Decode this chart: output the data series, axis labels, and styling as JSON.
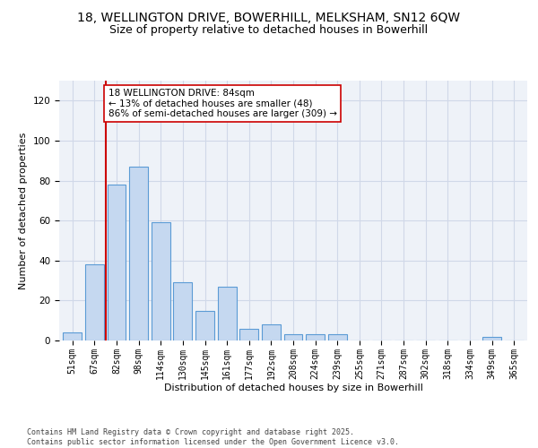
{
  "title_line1": "18, WELLINGTON DRIVE, BOWERHILL, MELKSHAM, SN12 6QW",
  "title_line2": "Size of property relative to detached houses in Bowerhill",
  "xlabel": "Distribution of detached houses by size in Bowerhill",
  "ylabel": "Number of detached properties",
  "categories": [
    "51sqm",
    "67sqm",
    "82sqm",
    "98sqm",
    "114sqm",
    "130sqm",
    "145sqm",
    "161sqm",
    "177sqm",
    "192sqm",
    "208sqm",
    "224sqm",
    "239sqm",
    "255sqm",
    "271sqm",
    "287sqm",
    "302sqm",
    "318sqm",
    "334sqm",
    "349sqm",
    "365sqm"
  ],
  "values": [
    4,
    38,
    78,
    87,
    59,
    29,
    15,
    27,
    6,
    8,
    3,
    3,
    3,
    0,
    0,
    0,
    0,
    0,
    0,
    2,
    0
  ],
  "bar_color": "#c5d8f0",
  "bar_edge_color": "#5b9bd5",
  "ylim": [
    0,
    130
  ],
  "yticks": [
    0,
    20,
    40,
    60,
    80,
    100,
    120
  ],
  "vline_x": 1.5,
  "annotation_text": "18 WELLINGTON DRIVE: 84sqm\n← 13% of detached houses are smaller (48)\n86% of semi-detached houses are larger (309) →",
  "annotation_box_color": "#ffffff",
  "annotation_box_edge_color": "#cc0000",
  "vline_color": "#cc0000",
  "grid_color": "#d0d8e8",
  "background_color": "#eef2f8",
  "footer_text": "Contains HM Land Registry data © Crown copyright and database right 2025.\nContains public sector information licensed under the Open Government Licence v3.0.",
  "title_fontsize": 10,
  "subtitle_fontsize": 9,
  "tick_fontsize": 7,
  "ylabel_fontsize": 8,
  "xlabel_fontsize": 8,
  "annotation_fontsize": 7.5,
  "footer_fontsize": 6
}
